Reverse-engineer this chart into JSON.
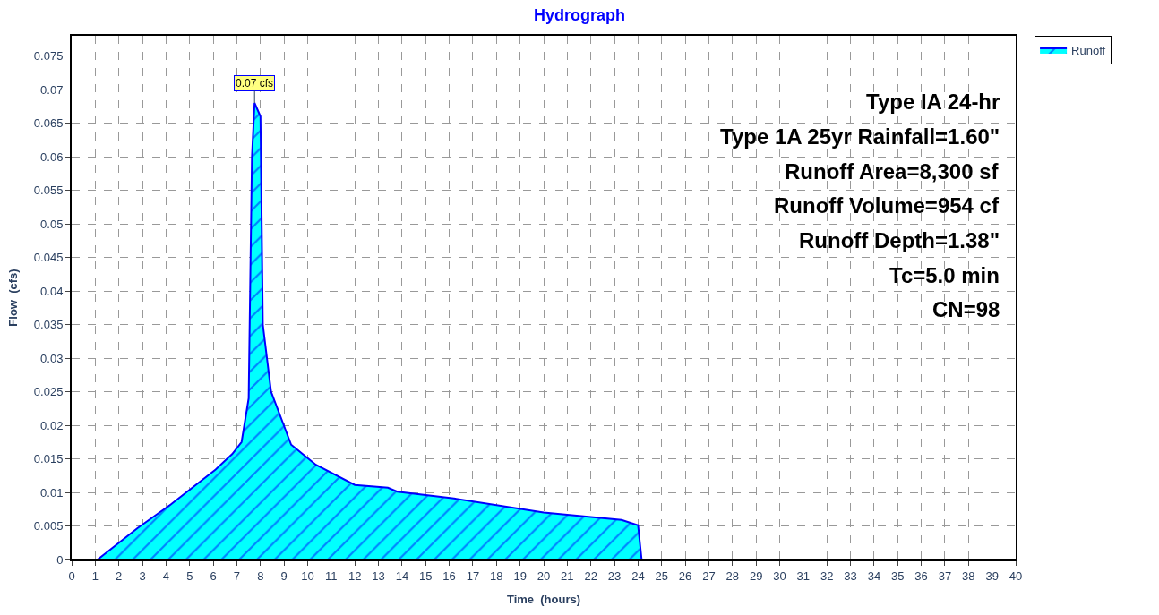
{
  "chart_data": {
    "type": "area",
    "title": "Hydrograph",
    "xlabel": "Time  (hours)",
    "ylabel": "Flow  (cfs)",
    "x": [
      0,
      1.1,
      2.8,
      4.2,
      6.1,
      6.8,
      7.2,
      7.5,
      7.64,
      7.75,
      8.0,
      8.1,
      8.45,
      9.3,
      10.35,
      12,
      13.4,
      13.8,
      16.2,
      20,
      23.3,
      24,
      24.15,
      40
    ],
    "series": [
      {
        "name": "Runoff",
        "color": "#00ffff",
        "values": [
          0,
          0,
          0.0047,
          0.0082,
          0.0134,
          0.0157,
          0.0175,
          0.024,
          0.06,
          0.068,
          0.066,
          0.035,
          0.025,
          0.0171,
          0.0141,
          0.0111,
          0.0107,
          0.0101,
          0.0091,
          0.007,
          0.0059,
          0.0051,
          0,
          0
        ]
      }
    ],
    "xlim": [
      0,
      40
    ],
    "xticks": [
      0,
      1,
      2,
      3,
      4,
      5,
      6,
      7,
      8,
      9,
      10,
      11,
      12,
      13,
      14,
      15,
      16,
      17,
      18,
      19,
      20,
      21,
      22,
      23,
      24,
      25,
      26,
      27,
      28,
      29,
      30,
      31,
      32,
      33,
      34,
      35,
      36,
      37,
      38,
      39,
      40
    ],
    "ylim": [
      0,
      0.078
    ],
    "yticks": [
      0,
      0.005,
      0.01,
      0.015,
      0.02,
      0.025,
      0.03,
      0.035,
      0.04,
      0.045,
      0.05,
      0.055,
      0.06,
      0.065,
      0.07,
      0.075
    ],
    "grid": true,
    "legend": "top right",
    "annotations": [
      {
        "text": "0.07 cfs",
        "x": 7.75,
        "y": 0.068
      },
      "Type IA 24-hr",
      "Type 1A 25yr Rainfall=1.60\"",
      "Runoff Area=8,300 sf",
      "Runoff Volume=954 cf",
      "Runoff Depth=1.38\"",
      "Tc=5.0 min",
      "CN=98"
    ]
  }
}
